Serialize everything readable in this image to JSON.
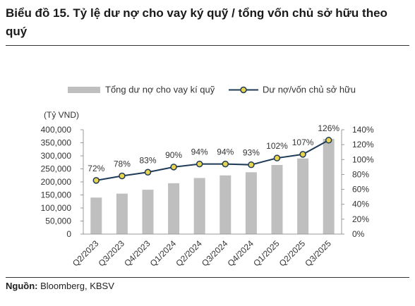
{
  "header": {
    "title": "Biểu đồ 15. Tỷ lệ dư nợ cho vay ký quỹ / tổng vốn chủ sở hữu theo quý"
  },
  "footer": {
    "source_label": "Nguồn:",
    "source_text": "Bloomberg, KBSV"
  },
  "colors": {
    "bar": "#bfbfbf",
    "line": "#1f3b57",
    "marker_fill": "#e8d44d",
    "marker_stroke": "#1f3b57"
  },
  "chart_data": {
    "type": "bar",
    "categories": [
      "Q2/2023",
      "Q3/2023",
      "Q4/2023",
      "Q1/2024",
      "Q2/2024",
      "Q3/2024",
      "Q4/2024",
      "Q1/2025",
      "Q2/2025",
      "Q3/2025"
    ],
    "series": [
      {
        "name": "Tổng dư nợ cho vay kí quỹ",
        "type": "bar",
        "axis": "left",
        "values": [
          140000,
          155000,
          170000,
          195000,
          215000,
          225000,
          237000,
          265000,
          290000,
          365000
        ]
      },
      {
        "name": "Dư nợ/vốn chủ sở hữu",
        "type": "line",
        "axis": "right",
        "values": [
          72,
          78,
          83,
          90,
          94,
          94,
          93,
          102,
          107,
          126
        ],
        "labels": [
          "72%",
          "78%",
          "83%",
          "90%",
          "94%",
          "94%",
          "93%",
          "102%",
          "107%",
          "126%"
        ]
      }
    ],
    "ylabel": "(Tỷ VND)",
    "ylim": [
      0,
      400000
    ],
    "y_ticks": [
      "0",
      "50,000",
      "100,000",
      "150,000",
      "200,000",
      "250,000",
      "300,000",
      "350,000",
      "400,000"
    ],
    "y2lim": [
      0,
      140
    ],
    "y2_ticks": [
      "0%",
      "20%",
      "40%",
      "60%",
      "80%",
      "100%",
      "120%",
      "140%"
    ],
    "legend_position": "top",
    "grid": false
  }
}
